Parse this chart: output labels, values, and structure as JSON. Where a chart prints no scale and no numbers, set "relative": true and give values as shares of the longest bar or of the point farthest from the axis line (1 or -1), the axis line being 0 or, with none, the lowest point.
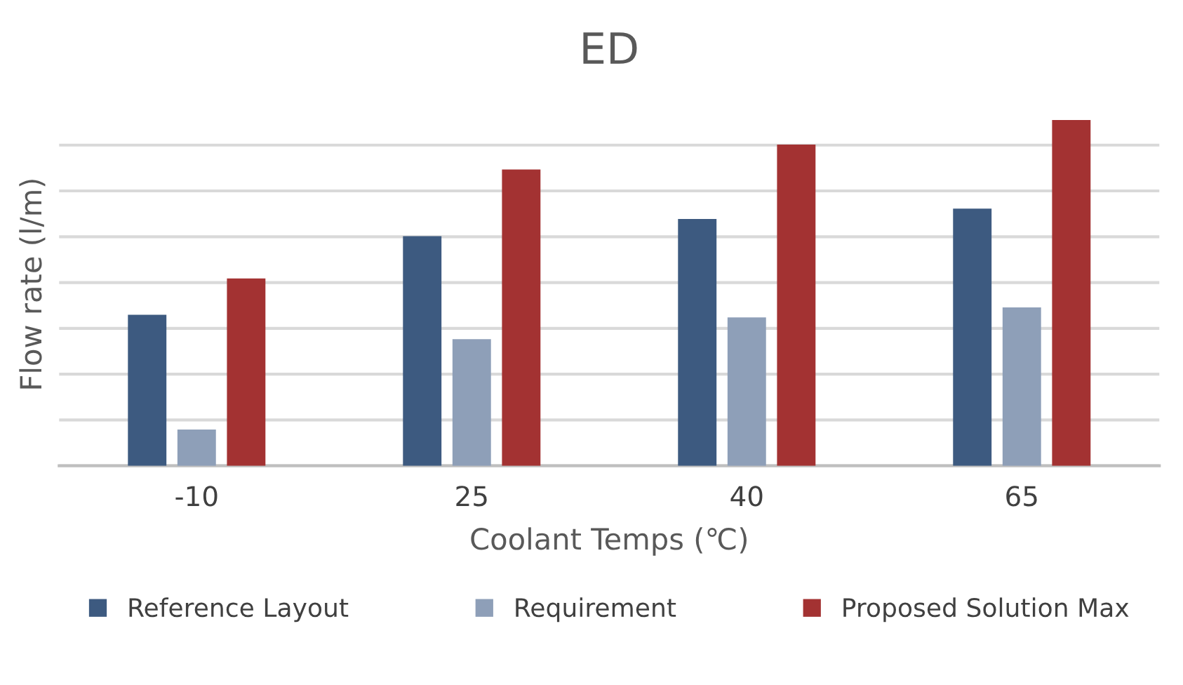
{
  "chart_data": {
    "type": "bar",
    "title": "ED",
    "xlabel": "Coolant Temps (℃)",
    "ylabel": "Flow rate (l/m)",
    "relative": true,
    "grid": "y",
    "legend": "bottom",
    "categories": [
      "-10",
      "25",
      "40",
      "65"
    ],
    "series": [
      {
        "name": "Reference Layout",
        "color": "#3d5a80",
        "values": [
          0.437,
          0.664,
          0.714,
          0.744
        ]
      },
      {
        "name": "Requirement",
        "color": "#8e9fb8",
        "values": [
          0.105,
          0.366,
          0.429,
          0.458
        ]
      },
      {
        "name": "Proposed Solution Max",
        "color": "#a33232",
        "values": [
          0.542,
          0.857,
          0.929,
          1
        ]
      }
    ]
  }
}
